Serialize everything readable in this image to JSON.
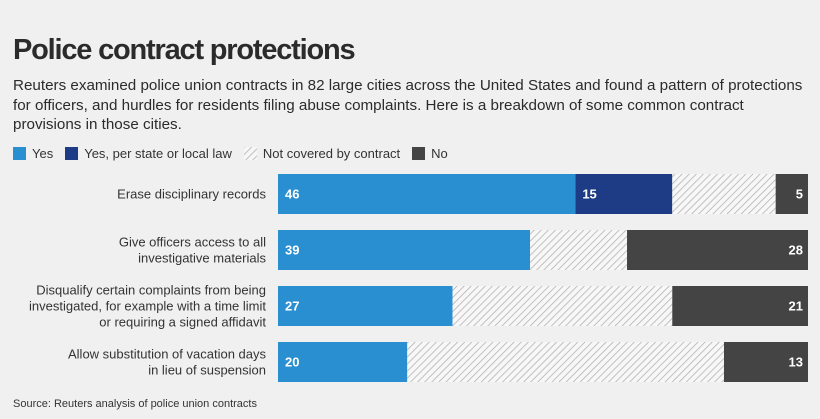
{
  "title": "Police contract protections",
  "subtitle": "Reuters examined police union contracts in 82 large cities across the United States and found a pattern of protections for officers, and hurdles for residents filing abuse complaints. Here is a breakdown of some common contract provisions in those cities.",
  "source": "Source: Reuters analysis of police union contracts",
  "colors": {
    "yes": "#2a8fd0",
    "yes_law": "#1e3c85",
    "not_covered": "#d7d7d7",
    "no": "#444444"
  },
  "chart_data": {
    "type": "bar",
    "orientation": "horizontal",
    "stacked": true,
    "total": 82,
    "legend": [
      "Yes",
      "Yes, per state or local law",
      "Not covered by contract",
      "No"
    ],
    "categories": [
      [
        "Erase disciplinary records"
      ],
      [
        "Give officers access to all",
        "investigative materials"
      ],
      [
        "Disqualify certain complaints from being",
        "investigated, for example with a time limit",
        "or requiring a signed affidavit"
      ],
      [
        "Allow substitution of vacation days",
        "in lieu of suspension"
      ]
    ],
    "series": [
      {
        "name": "Yes",
        "values": [
          46,
          39,
          27,
          20
        ]
      },
      {
        "name": "Yes, per state or local law",
        "values": [
          15,
          0,
          0,
          0
        ]
      },
      {
        "name": "Not covered by contract",
        "values": [
          16,
          15,
          34,
          49
        ]
      },
      {
        "name": "No",
        "values": [
          5,
          28,
          21,
          13
        ]
      }
    ],
    "data_labels": [
      [
        "46",
        "15",
        "",
        "5"
      ],
      [
        "39",
        "",
        "",
        "28"
      ],
      [
        "27",
        "",
        "",
        "21"
      ],
      [
        "20",
        "",
        "",
        "13"
      ]
    ]
  }
}
